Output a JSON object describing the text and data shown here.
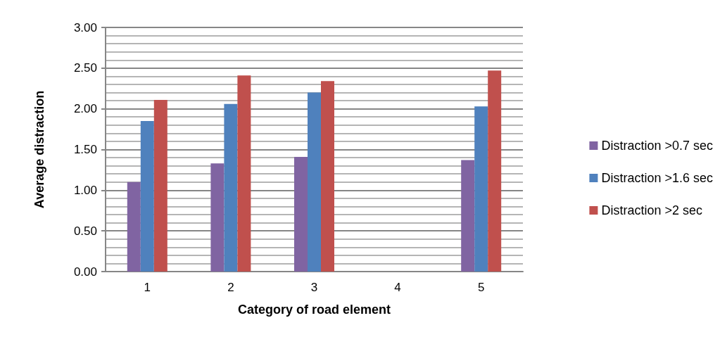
{
  "chart_data": {
    "type": "bar",
    "xlabel": "Category of road element",
    "ylabel": "Average distraction",
    "categories": [
      "1",
      "2",
      "3",
      "4",
      "5"
    ],
    "series": [
      {
        "name": "Distraction >0.7 sec",
        "color": "#8064a2",
        "values": [
          1.1,
          1.33,
          1.41,
          null,
          1.37
        ]
      },
      {
        "name": "Distraction >1.6 sec",
        "color": "#4f81bd",
        "values": [
          1.85,
          2.06,
          2.2,
          null,
          2.03
        ]
      },
      {
        "name": "Distraction >2 sec",
        "color": "#c0504d",
        "values": [
          2.11,
          2.41,
          2.34,
          null,
          2.47
        ]
      }
    ],
    "ylim": [
      0,
      3
    ],
    "yticks": [
      {
        "value": 0,
        "label": "0.00"
      },
      {
        "value": 0.5,
        "label": "0.50"
      },
      {
        "value": 1,
        "label": "1.00"
      },
      {
        "value": 1.5,
        "label": "1.50"
      },
      {
        "value": 2,
        "label": "2.00"
      },
      {
        "value": 2.5,
        "label": "2.50"
      },
      {
        "value": 3,
        "label": "3.00"
      }
    ],
    "grid": true,
    "legend": "right"
  }
}
